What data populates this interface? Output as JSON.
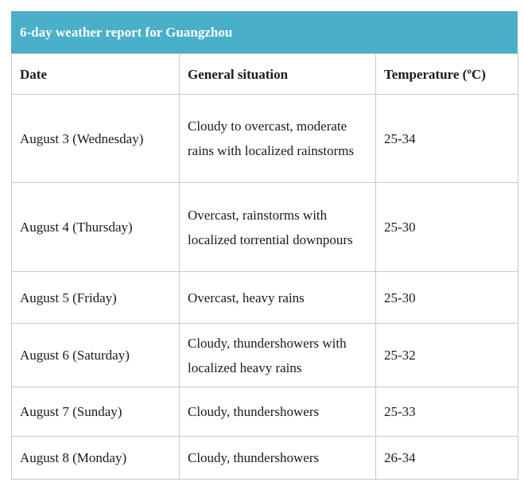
{
  "title": "6-day weather report for Guangzhou",
  "headers": {
    "date": "Date",
    "situation": "General situation",
    "temperature": "Temperature (ºC)"
  },
  "rows": [
    {
      "date": "August 3 (Wednesday)",
      "situation": "Cloudy to overcast, moderate rains with localized rainstorms",
      "temperature": "25-34"
    },
    {
      "date": "August 4 (Thursday)",
      "situation": "Overcast, rainstorms with localized torrential downpours",
      "temperature": "25-30"
    },
    {
      "date": "August 5 (Friday)",
      "situation": "Overcast, heavy rains",
      "temperature": "25-30"
    },
    {
      "date": "August 6 (Saturday)",
      "situation": "Cloudy, thundershowers with localized heavy rains",
      "temperature": "25-32"
    },
    {
      "date": "August 7 (Sunday)",
      "situation": "Cloudy, thundershowers",
      "temperature": "25-33"
    },
    {
      "date": "August 8 (Monday)",
      "situation": "Cloudy, thundershowers",
      "temperature": "26-34"
    }
  ]
}
